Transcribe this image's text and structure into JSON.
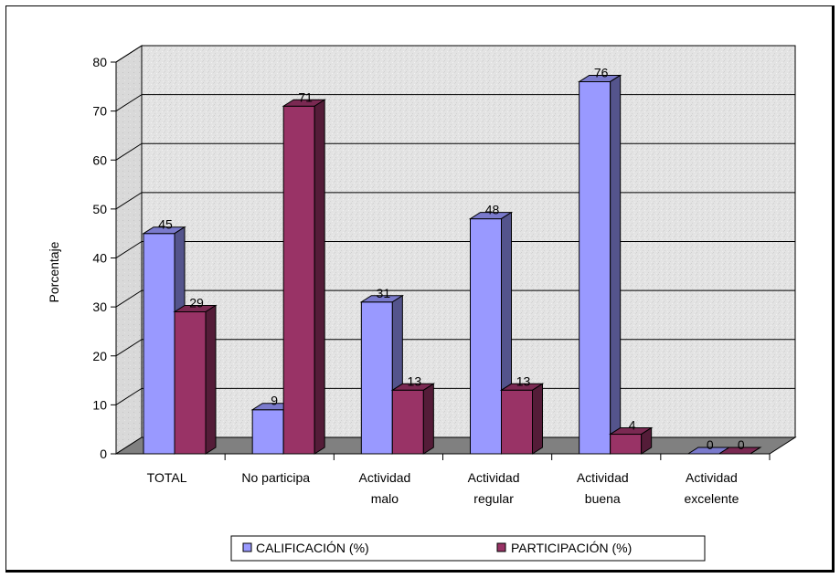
{
  "chart_data": {
    "type": "bar",
    "categories": [
      [
        "TOTAL"
      ],
      [
        "No participa"
      ],
      [
        "Actividad",
        "malo"
      ],
      [
        "Actividad",
        "regular"
      ],
      [
        "Actividad",
        "buena"
      ],
      [
        "Actividad",
        "excelente"
      ]
    ],
    "series": [
      {
        "name": "CALIFICACIÓN (%)",
        "values": [
          45,
          9,
          31,
          48,
          76,
          0
        ],
        "color": "#9999ff"
      },
      {
        "name": "PARTICIPACIÓN (%)",
        "values": [
          29,
          71,
          13,
          13,
          4,
          0
        ],
        "color": "#993366"
      }
    ],
    "ylabel": "Porcentaje",
    "ylim": [
      0,
      80
    ],
    "yticks": [
      0,
      10,
      20,
      30,
      40,
      50,
      60,
      70,
      80
    ],
    "grid": true,
    "legend_position": "bottom",
    "style": "3d-clustered"
  }
}
